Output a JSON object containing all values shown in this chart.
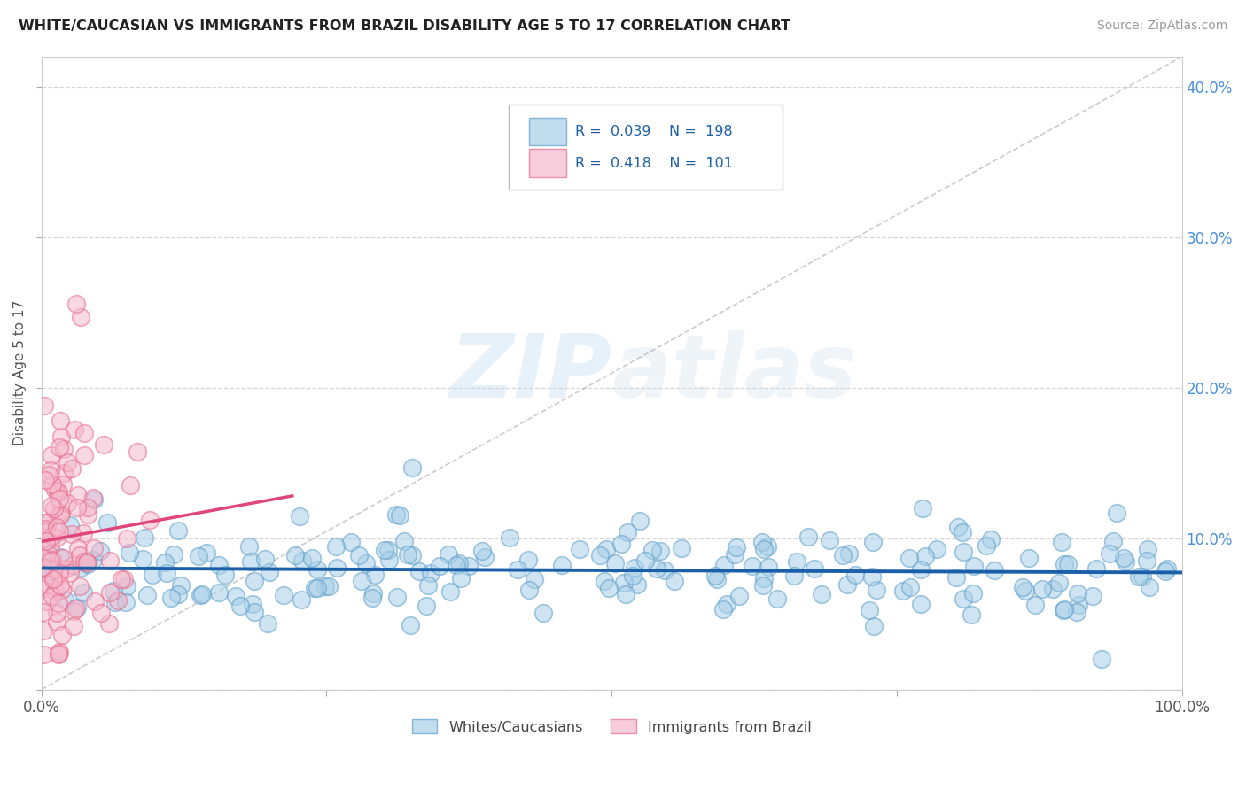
{
  "title": "WHITE/CAUCASIAN VS IMMIGRANTS FROM BRAZIL DISABILITY AGE 5 TO 17 CORRELATION CHART",
  "source": "Source: ZipAtlas.com",
  "ylabel": "Disability Age 5 to 17",
  "watermark_zip": "ZIP",
  "watermark_atlas": "atlas",
  "series": [
    {
      "label": "Whites/Caucasians",
      "color": "#a8cfe8",
      "edge_color": "#5b9ec9",
      "R": 0.039,
      "N": 198,
      "seed": 42
    },
    {
      "label": "Immigrants from Brazil",
      "color": "#f4b8cc",
      "edge_color": "#e8688a",
      "R": 0.418,
      "N": 101,
      "seed": 99
    }
  ],
  "xlim": [
    0,
    1
  ],
  "ylim": [
    0,
    0.42
  ],
  "trend_blue": "#1a5fa8",
  "trend_pink": "#e0457b",
  "legend_text_color": "#1a5fa8",
  "legend_N_color": "#e53935",
  "background_color": "#ffffff",
  "grid_color": "#cccccc",
  "right_tick_color": "#4a90d9",
  "yticks": [
    0.0,
    0.1,
    0.2,
    0.3,
    0.4
  ],
  "ytick_labels_right": [
    "",
    "10.0%",
    "20.0%",
    "30.0%",
    "40.0%"
  ],
  "xticks": [
    0,
    0.25,
    0.5,
    0.75,
    1.0
  ],
  "xtick_labels": [
    "0.0%",
    "",
    "",
    "",
    "100.0%"
  ]
}
